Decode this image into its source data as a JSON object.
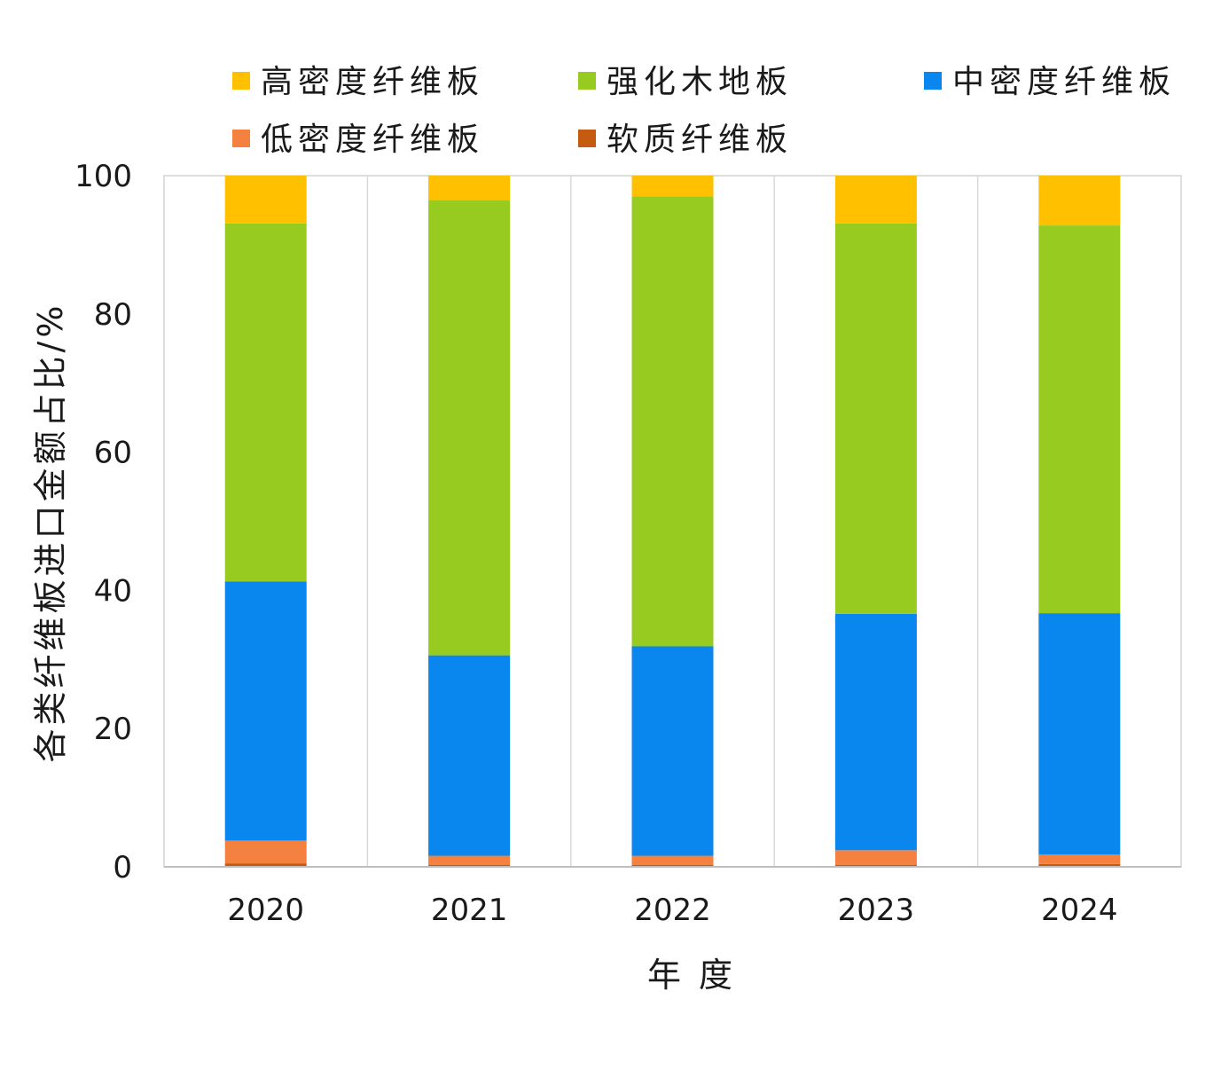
{
  "chart_data": {
    "type": "bar",
    "stacked": true,
    "categories": [
      "2020",
      "2021",
      "2022",
      "2023",
      "2024"
    ],
    "xlabel": "年 度",
    "ylabel": "各类纤维板进口金额占比/%",
    "ylim": [
      0,
      100
    ],
    "yticks": [
      "0",
      "20",
      "40",
      "60",
      "80",
      "100"
    ],
    "grid": "vertical",
    "legend_position": "top",
    "series": [
      {
        "name": "软质纤维板",
        "color": "#c55a11",
        "values": [
          0.5,
          0.3,
          0.3,
          0.3,
          0.4
        ]
      },
      {
        "name": "低密度纤维板",
        "color": "#f4813f",
        "values": [
          3.3,
          1.3,
          1.3,
          2.1,
          1.4
        ]
      },
      {
        "name": "中密度纤维板",
        "color": "#0a86ef",
        "values": [
          37.5,
          29.0,
          30.3,
          34.2,
          34.9
        ]
      },
      {
        "name": "强化木地板",
        "color": "#98cb1f",
        "values": [
          51.8,
          65.9,
          65.1,
          56.5,
          56.1
        ]
      },
      {
        "name": "高密度纤维板",
        "color": "#ffc000",
        "values": [
          6.9,
          3.5,
          3.0,
          6.9,
          7.2
        ]
      }
    ]
  }
}
